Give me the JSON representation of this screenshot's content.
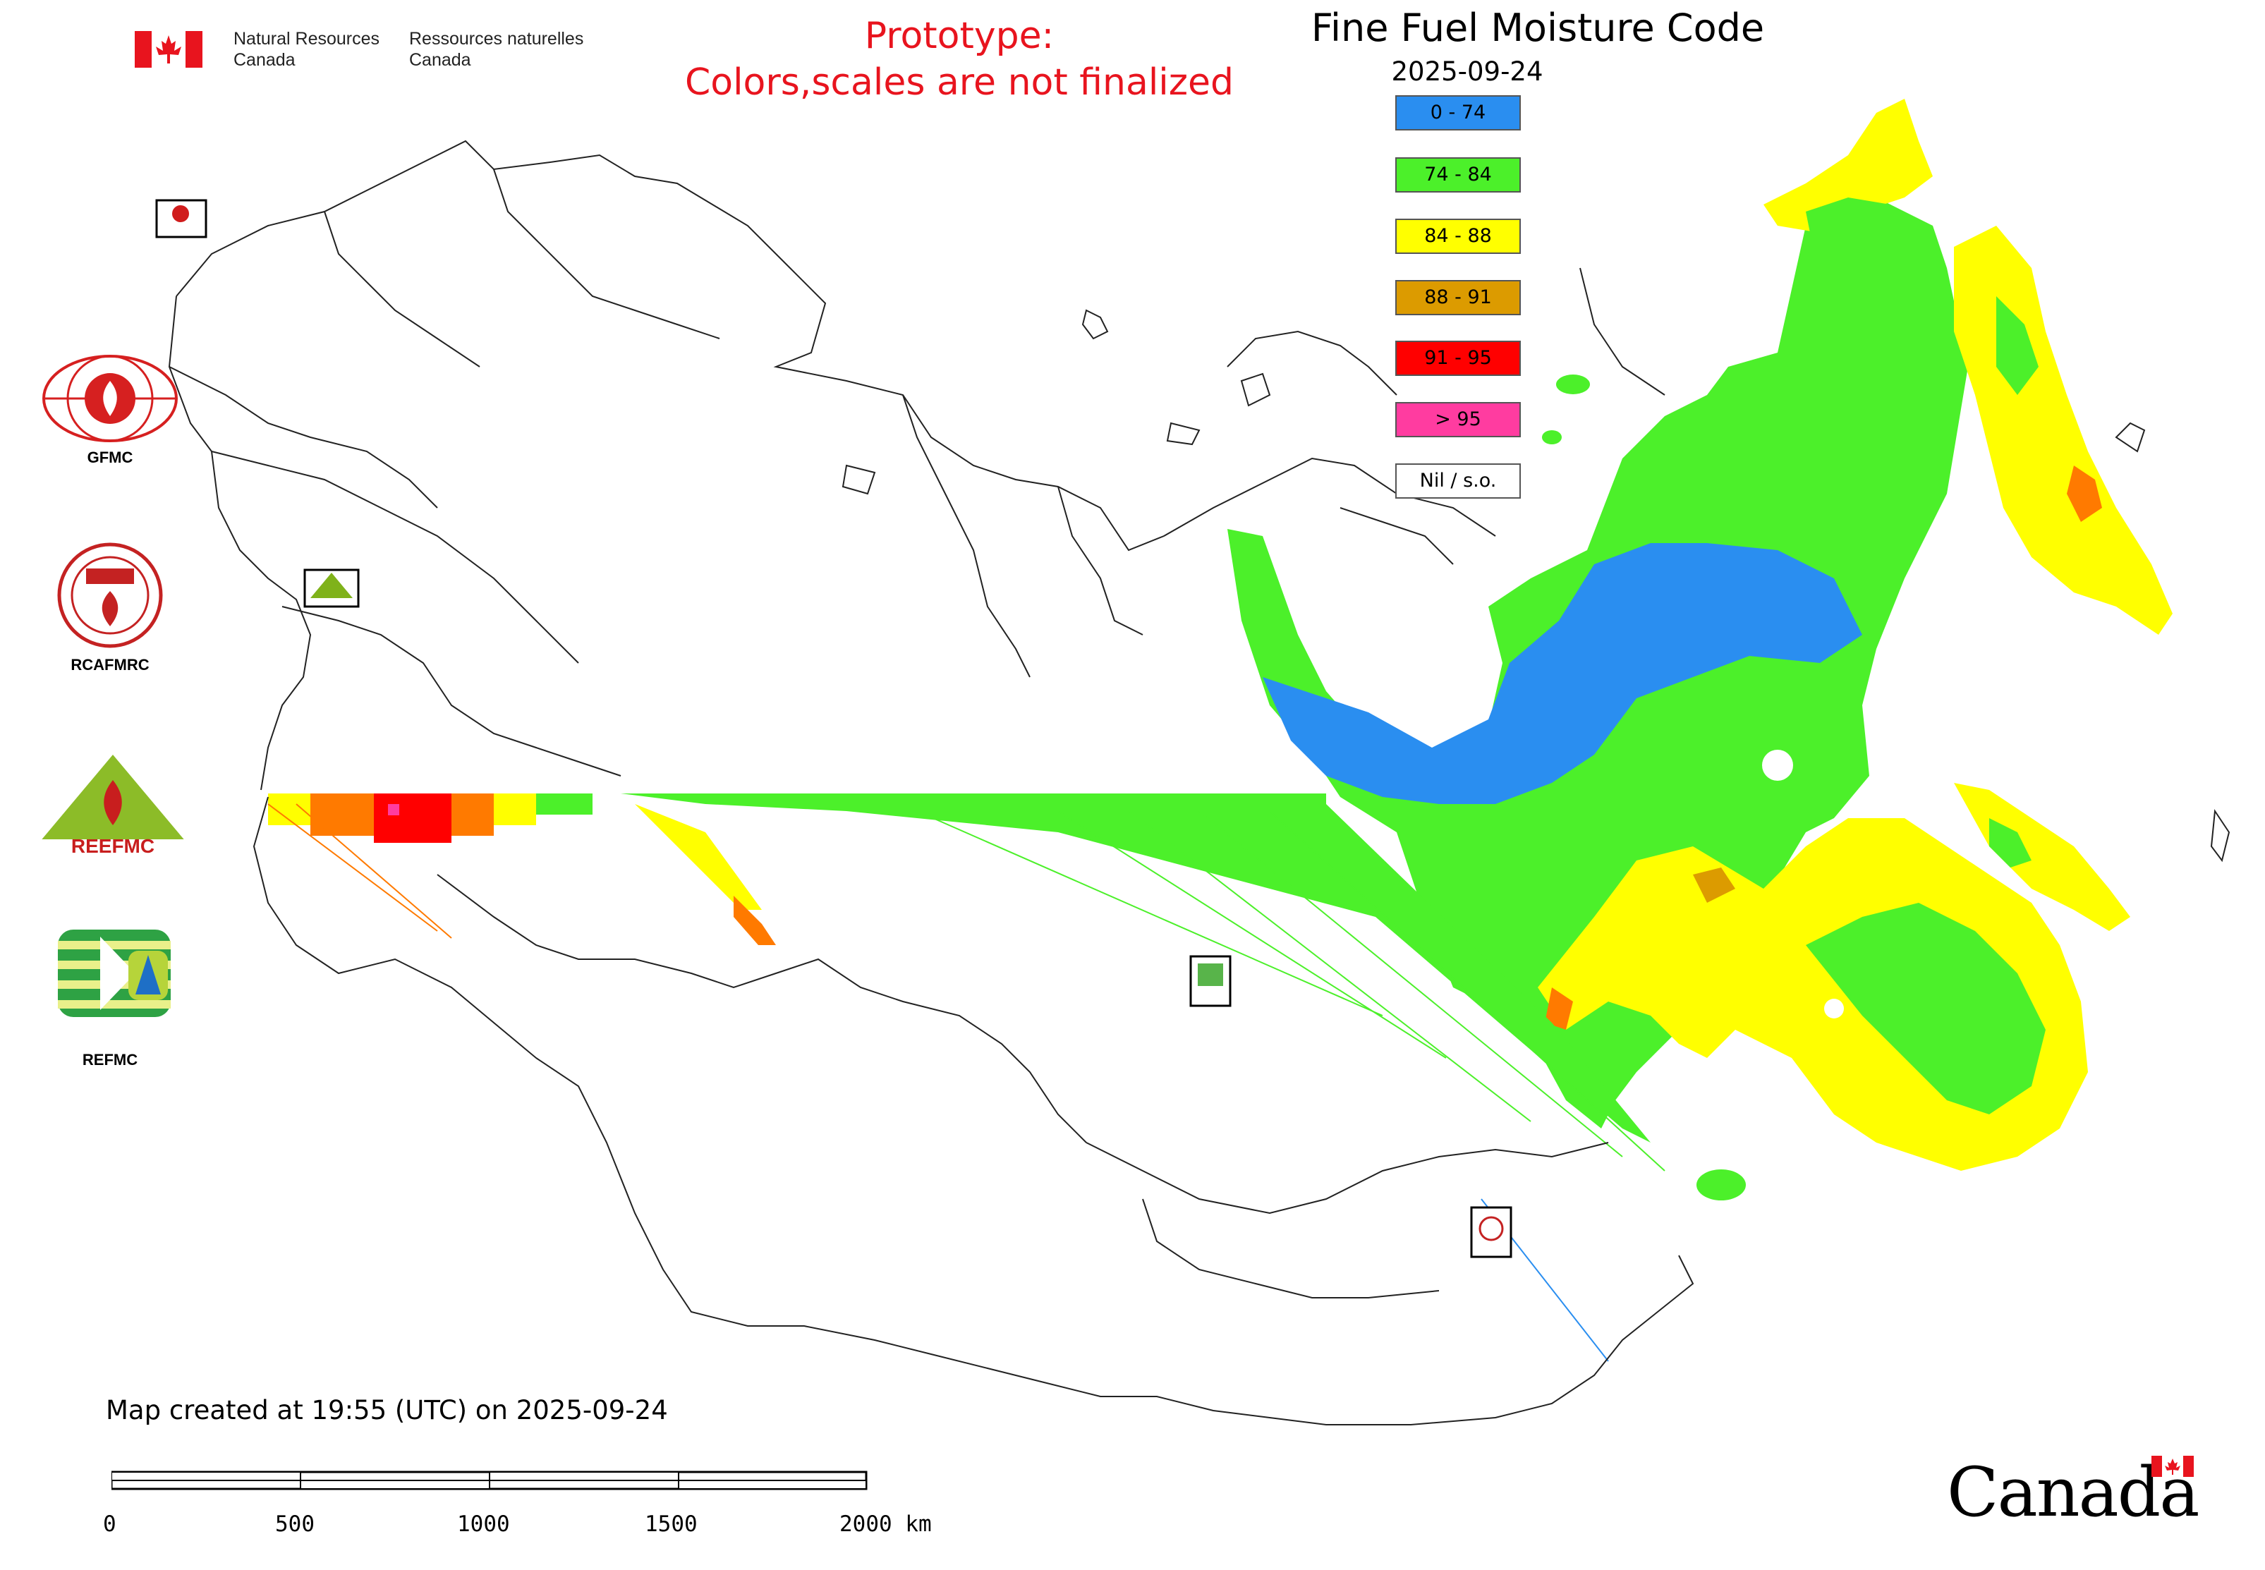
{
  "header": {
    "dept_en_line1": "Natural Resources",
    "dept_en_line2": "Canada",
    "dept_fr_line1": "Ressources naturelles",
    "dept_fr_line2": "Canada"
  },
  "prototype_notice": {
    "line1": "Prototype:",
    "line2": "Colors,scales are not finalized"
  },
  "map": {
    "title": "Fine Fuel Moisture Code",
    "date": "2025-09-24",
    "created_text": "Map created at 19:55 (UTC) on 2025-09-24"
  },
  "legend": [
    {
      "label": "0 - 74",
      "color": "#2a8ef0"
    },
    {
      "label": "74 - 84",
      "color": "#4cf02a"
    },
    {
      "label": "84 - 88",
      "color": "#ffff00"
    },
    {
      "label": "88 - 91",
      "color": "#dc9b00"
    },
    {
      "label": "91 - 95",
      "color": "#ff0000"
    },
    {
      "label": "> 95",
      "color": "#ff3ca0"
    },
    {
      "label": "Nil / s.o.",
      "color": "#ffffff"
    }
  ],
  "logos": [
    {
      "label": "GFMC"
    },
    {
      "label": "RCAFMRC"
    },
    {
      "label": "REEFMC"
    },
    {
      "label": "REFMC"
    }
  ],
  "scale": {
    "ticks": [
      "0",
      "500",
      "1000",
      "1500",
      "2000 km"
    ]
  },
  "wordmark": "Canada"
}
